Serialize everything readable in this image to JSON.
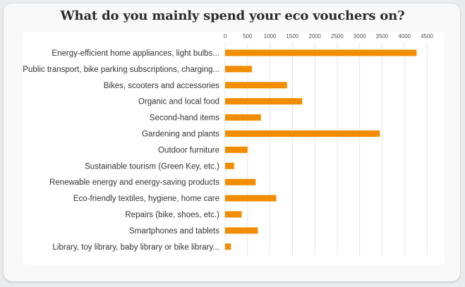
{
  "chart_data": {
    "type": "bar",
    "orientation": "horizontal",
    "title": "What do you mainly spend your eco vouchers on?",
    "xlabel": "",
    "ylabel": "",
    "xlim": [
      0,
      4500
    ],
    "x_ticks": [
      "0",
      "500",
      "1000",
      "1500",
      "2000",
      "2500",
      "3000",
      "3500",
      "4000",
      "4500"
    ],
    "grid": true,
    "bar_color": "#f28c00",
    "categories": [
      "Energy-efficient home appliances, light bulbs...",
      "Public transport, bike parking subscriptions, charging...",
      "Bikes, scooters and accessories",
      "Organic and local food",
      "Second-hand items",
      "Gardening and plants",
      "Outdoor furniture",
      "Sustainable tourism (Green Key, etc.)",
      "Renewable energy and energy-saving products",
      "Eco-friendly textiles, hygiene, home care",
      "Repairs (bike, shoes, etc.)",
      "Smartphones and tablets",
      "Library, toy library, baby library or bike library..."
    ],
    "values": [
      4270,
      600,
      1380,
      1720,
      800,
      3450,
      500,
      200,
      680,
      1140,
      370,
      730,
      130
    ]
  }
}
